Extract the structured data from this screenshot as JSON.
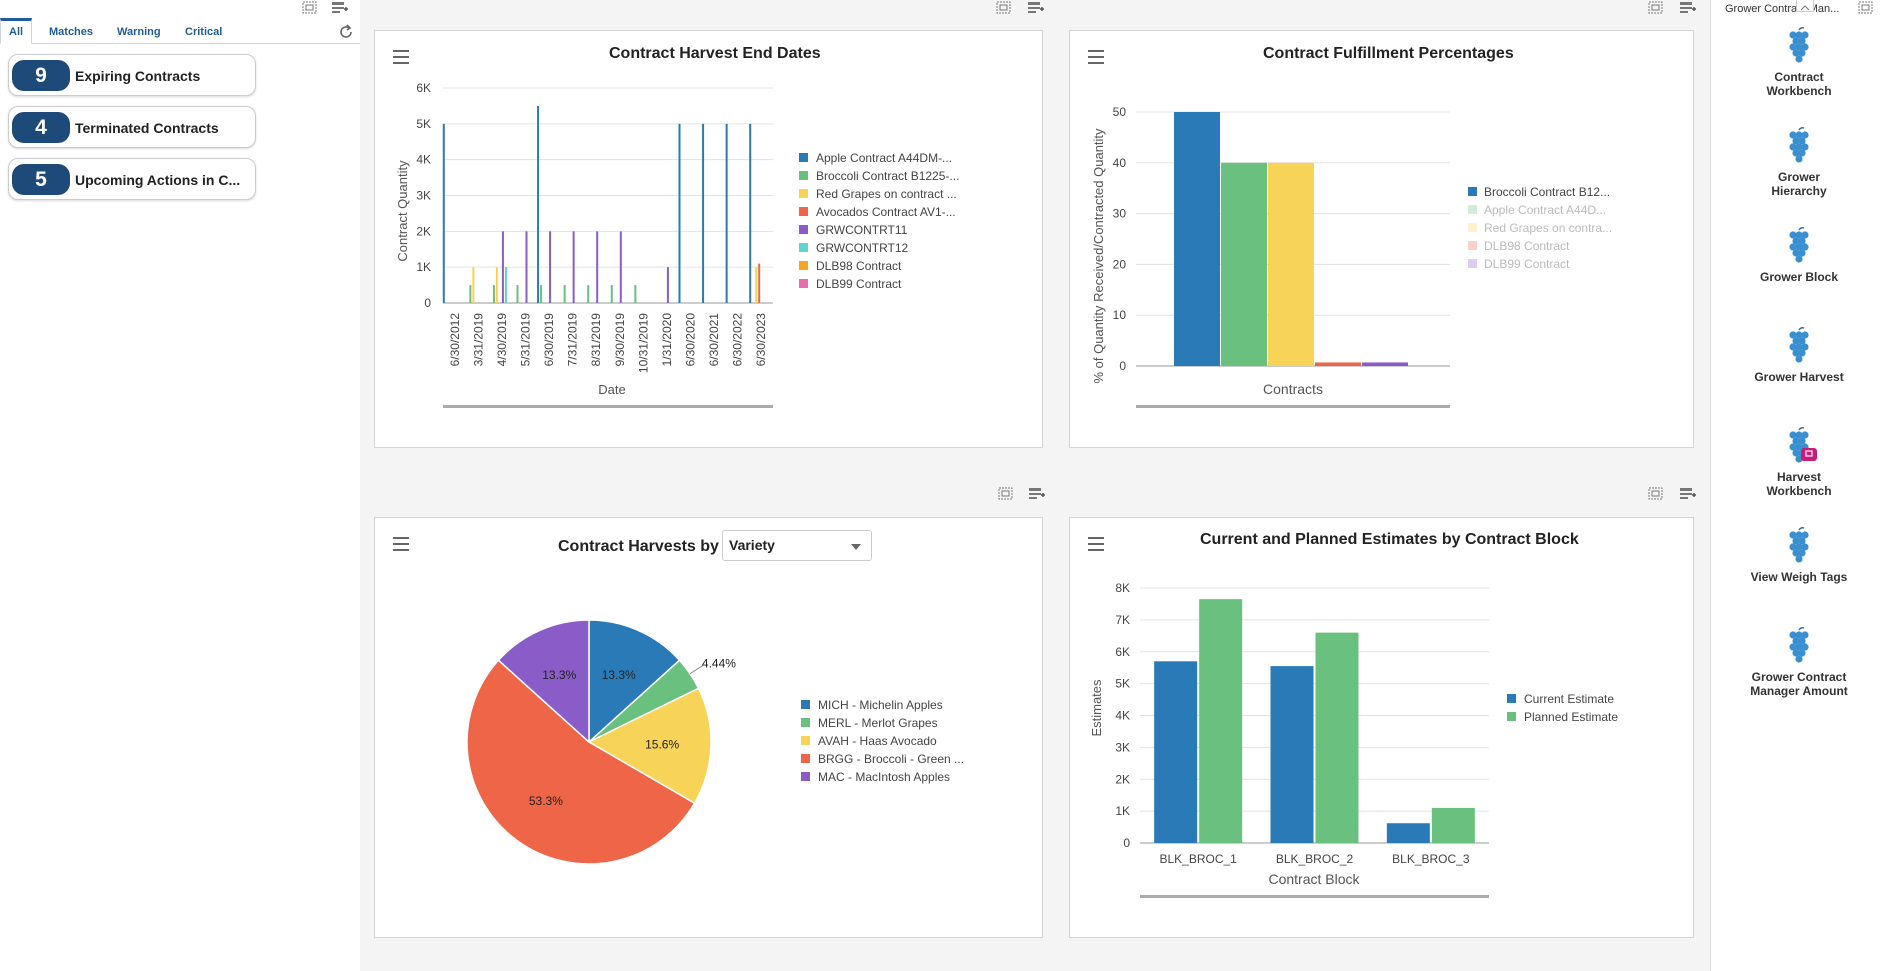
{
  "tabs": [
    {
      "label": "All",
      "active": true
    },
    {
      "label": "Matches",
      "active": false
    },
    {
      "label": "Warning",
      "active": false
    },
    {
      "label": "Critical",
      "active": false
    }
  ],
  "cards": [
    {
      "count": "9",
      "label": "Expiring Contracts"
    },
    {
      "count": "4",
      "label": "Terminated Contracts"
    },
    {
      "count": "5",
      "label": "Upcoming Actions in C..."
    }
  ],
  "chart1": {
    "chart_data": {
      "type": "bar",
      "title": "Contract Harvest End Dates",
      "xlabel": "Date",
      "ylabel": "Contract Quantity",
      "ylim": [
        0,
        6000
      ],
      "yticks": [
        "0",
        "1K",
        "2K",
        "3K",
        "4K",
        "5K",
        "6K"
      ],
      "categories": [
        "6/30/2012",
        "3/31/2019",
        "4/30/2019",
        "5/31/2019",
        "6/30/2019",
        "7/31/2019",
        "8/31/2019",
        "9/30/2019",
        "10/31/2019",
        "1/31/2020",
        "6/30/2020",
        "6/30/2021",
        "6/30/2022",
        "6/30/2023"
      ],
      "series": [
        {
          "name": "Apple Contract A44DM-...",
          "color": "#2a7ab8",
          "values": [
            5000,
            0,
            0,
            0,
            5500,
            0,
            0,
            0,
            0,
            0,
            5000,
            5000,
            5000,
            5000
          ]
        },
        {
          "name": "Broccoli Contract B1225-...",
          "color": "#6ac07f",
          "values": [
            0,
            500,
            500,
            500,
            500,
            500,
            500,
            500,
            500,
            0,
            0,
            0,
            0,
            0
          ]
        },
        {
          "name": "Red Grapes on contract ...",
          "color": "#f7d358",
          "values": [
            0,
            1000,
            1000,
            0,
            0,
            0,
            0,
            0,
            0,
            0,
            0,
            0,
            0,
            1000
          ]
        },
        {
          "name": "Avocados Contract AV1-...",
          "color": "#ee6647",
          "values": [
            0,
            0,
            0,
            0,
            0,
            0,
            0,
            0,
            0,
            0,
            0,
            0,
            0,
            1100
          ]
        },
        {
          "name": "GRWCONTRT11",
          "color": "#8a5cc8",
          "values": [
            0,
            0,
            2000,
            2000,
            2000,
            2000,
            2000,
            2000,
            0,
            1000,
            0,
            0,
            0,
            0
          ]
        },
        {
          "name": "GRWCONTRT12",
          "color": "#5fd3cf",
          "values": [
            0,
            0,
            1000,
            0,
            0,
            0,
            0,
            0,
            0,
            0,
            0,
            0,
            0,
            0
          ]
        },
        {
          "name": "DLB98 Contract",
          "color": "#f5a623",
          "values": [
            0,
            0,
            0,
            0,
            0,
            0,
            0,
            0,
            0,
            0,
            0,
            0,
            0,
            0
          ]
        },
        {
          "name": "DLB99 Contract",
          "color": "#e96bb0",
          "values": [
            0,
            0,
            0,
            0,
            0,
            0,
            0,
            0,
            0,
            0,
            0,
            0,
            0,
            0
          ]
        }
      ]
    }
  },
  "chart2": {
    "chart_data": {
      "type": "bar",
      "title": "Contract Fulfillment Percentages",
      "xlabel": "Contracts",
      "ylabel": "% of Quantity Received/Contracted Quantity",
      "ylim": [
        0,
        50
      ],
      "yticks": [
        "0",
        "10",
        "20",
        "30",
        "40",
        "50"
      ],
      "series": [
        {
          "name": "Broccoli Contract B12...",
          "color": "#2a7ab8",
          "value": 50,
          "faded": false
        },
        {
          "name": "Apple Contract A44D...",
          "color": "#6ac07f",
          "value": 40,
          "faded": true
        },
        {
          "name": "Red Grapes on contra...",
          "color": "#f7d358",
          "value": 40,
          "faded": true
        },
        {
          "name": "DLB98 Contract",
          "color": "#ee6647",
          "value": 0.7,
          "faded": true
        },
        {
          "name": "DLB99 Contract",
          "color": "#8a5cc8",
          "value": 0.7,
          "faded": true
        }
      ]
    }
  },
  "chart3": {
    "title_prefix": "Contract Harvests by",
    "select_value": "Variety",
    "chart_data": {
      "type": "pie",
      "title": "Contract Harvests by Variety",
      "slices": [
        {
          "name": "MICH - Michelin Apples",
          "value": 13.3,
          "label": "13.3%",
          "color": "#2a7ab8"
        },
        {
          "name": "MERL - Merlot Grapes",
          "value": 4.44,
          "label": "4.44%",
          "color": "#6ac07f"
        },
        {
          "name": "AVAH - Haas Avocado",
          "value": 15.6,
          "label": "15.6%",
          "color": "#f7d358"
        },
        {
          "name": "BRGG - Broccoli - Green ...",
          "value": 53.3,
          "label": "53.3%",
          "color": "#ee6647"
        },
        {
          "name": "MAC - MacIntosh Apples",
          "value": 13.3,
          "label": "13.3%",
          "color": "#8a5cc8"
        }
      ]
    }
  },
  "chart4": {
    "chart_data": {
      "type": "bar",
      "title": "Current and Planned Estimates by Contract Block",
      "xlabel": "Contract Block",
      "ylabel": "Estimates",
      "ylim": [
        0,
        8000
      ],
      "yticks": [
        "0",
        "1K",
        "2K",
        "3K",
        "4K",
        "5K",
        "6K",
        "7K",
        "8K"
      ],
      "categories": [
        "BLK_BROC_1",
        "BLK_BROC_2",
        "BLK_BROC_3"
      ],
      "series": [
        {
          "name": "Current Estimate",
          "color": "#2a7ab8",
          "values": [
            5700,
            5550,
            620
          ]
        },
        {
          "name": "Planned Estimate",
          "color": "#6ac07f",
          "values": [
            7650,
            6600,
            1100
          ]
        }
      ]
    }
  },
  "right_nav": {
    "header": "Grower Contract Man...",
    "items": [
      {
        "label1": "Contract",
        "label2": "Workbench"
      },
      {
        "label1": "Grower",
        "label2": "Hierarchy"
      },
      {
        "label1": "Grower Block",
        "label2": ""
      },
      {
        "label1": "Grower Harvest",
        "label2": ""
      },
      {
        "label1": "Harvest",
        "label2": "Workbench"
      },
      {
        "label1": "View Weigh Tags",
        "label2": ""
      },
      {
        "label1": "Grower Contract",
        "label2": "Manager Amount"
      }
    ]
  },
  "colors": {
    "accent": "#1f5c99",
    "badge": "#1e4a7a",
    "grape": "#3a8fd0",
    "briefcase": "#cc1a7a"
  }
}
